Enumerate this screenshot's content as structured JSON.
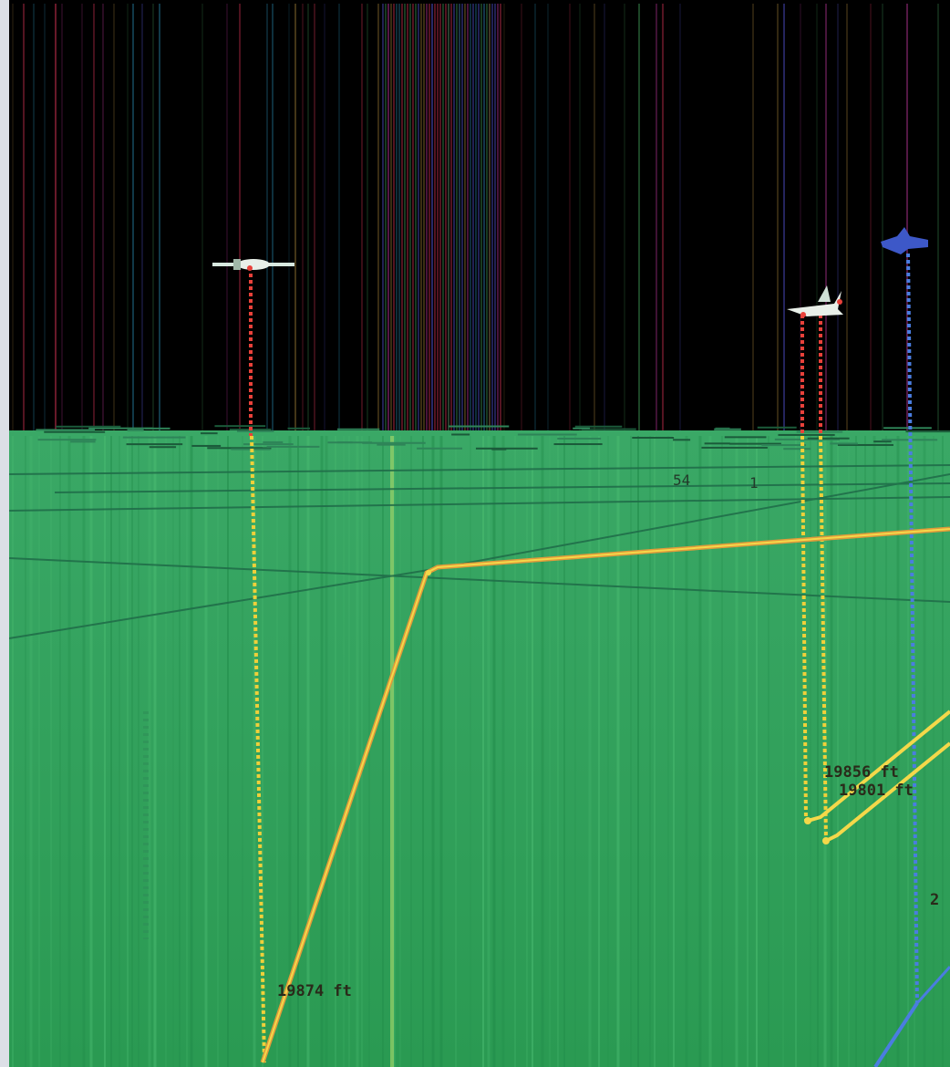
{
  "scene": {
    "colors": {
      "sky": "#000000",
      "ground": "#249a55",
      "ground_light": "#3ab064",
      "track_orange": "#e0a33a",
      "track_yellow": "#f4d23a",
      "drop_red": "#e8413a",
      "drop_yellow": "#f0d03a",
      "drop_blue": "#4a7de0",
      "aircraft_white": "#e8efe8",
      "aircraft_blue": "#3d58c8",
      "frame_top": "#e8c64a",
      "frame_left": "#dcdfe6"
    },
    "aircraft": [
      {
        "id": "aircraft-1",
        "icon": "white-jet-icon"
      },
      {
        "id": "aircraft-2",
        "icon": "white-jet-icon"
      },
      {
        "id": "aircraft-3",
        "icon": "blue-jet-icon"
      }
    ],
    "grid_labels": [
      {
        "text": "54"
      },
      {
        "text": "1"
      }
    ],
    "track_labels": [
      {
        "text": "19856 ft"
      },
      {
        "text": "19801 ft"
      },
      {
        "text": "19874 ft"
      },
      {
        "text": "2"
      }
    ]
  }
}
